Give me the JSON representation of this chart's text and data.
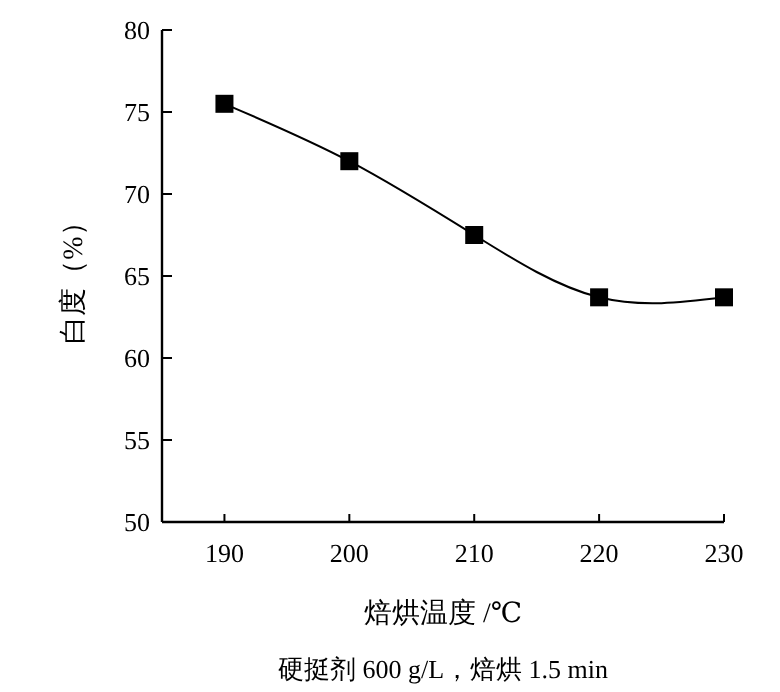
{
  "chart_data": {
    "type": "line",
    "xlabel": "焙烘温度 /℃",
    "ylabel": "白度（%）",
    "annotations": [
      "硬挺剂 600 g/L，焙烘 1.5 min"
    ],
    "x": [
      190,
      200,
      210,
      220,
      230
    ],
    "series": [
      {
        "color": "#000000",
        "values": [
          75.5,
          72,
          67.5,
          63.7,
          63.7
        ]
      }
    ],
    "xlim": [
      185,
      230
    ],
    "xticks": [
      190,
      200,
      210,
      220,
      230
    ],
    "ylim": [
      50,
      80
    ],
    "yticks": [
      50,
      55,
      60,
      65,
      70,
      75,
      80
    ],
    "marker": "square",
    "line_style": "solid",
    "grid": false
  }
}
